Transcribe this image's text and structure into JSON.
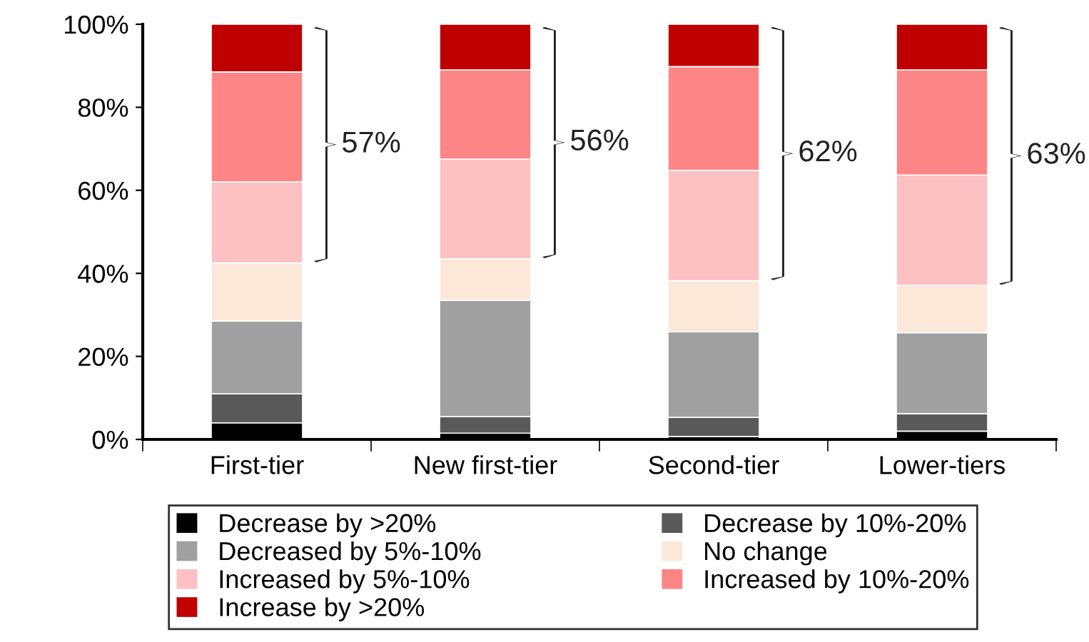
{
  "chart_data": {
    "type": "bar",
    "stacked": true,
    "legend": "bottom",
    "grid": false,
    "categories": [
      "First-tier",
      "New first-tier",
      "Second-tier",
      "Lower-tiers"
    ],
    "series": [
      {
        "name": "Decrease by >20%",
        "color": "#000000",
        "values": [
          4,
          1.5,
          0.7,
          2
        ]
      },
      {
        "name": "Decrease by 10%-20%",
        "color": "#595959",
        "values": [
          7,
          4,
          4.6,
          4.2
        ]
      },
      {
        "name": "Decreased by 5%-10%",
        "color": "#a0a0a0",
        "values": [
          17.5,
          28,
          20.6,
          19.5
        ]
      },
      {
        "name": "No change",
        "color": "#fce8d9",
        "values": [
          14,
          10,
          12.3,
          11.4
        ]
      },
      {
        "name": "Increased by 5%-10%",
        "color": "#fdc0c3",
        "values": [
          19.5,
          24,
          26.6,
          26.6
        ]
      },
      {
        "name": "Increased by 10%-20%",
        "color": "#fd8586",
        "values": [
          26.5,
          21.5,
          25,
          25.3
        ]
      },
      {
        "name": "Increase by >20%",
        "color": "#c00000",
        "values": [
          11.5,
          11,
          10.2,
          11
        ]
      }
    ],
    "ylim": [
      0,
      100
    ],
    "yticks": [
      {
        "value": 0,
        "label": "0%"
      },
      {
        "value": 20,
        "label": "20%"
      },
      {
        "value": 40,
        "label": "40%"
      },
      {
        "value": 60,
        "label": "60%"
      },
      {
        "value": 80,
        "label": "80%"
      },
      {
        "value": 100,
        "label": "100%"
      }
    ],
    "annotations": [
      "57%",
      "56%",
      "62%",
      "63%"
    ]
  }
}
